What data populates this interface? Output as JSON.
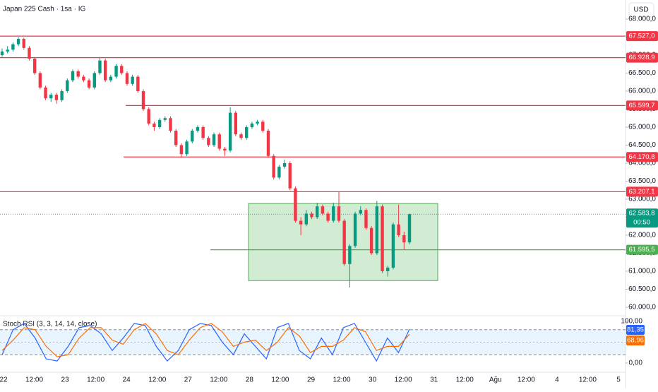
{
  "chart_data": [
    {
      "type": "candlestick",
      "title": "Japan 225 Cash · 1sa · IG",
      "currency": "USD",
      "up_color": "#089981",
      "down_color": "#f23645",
      "candles": [
        [
          67000,
          67180,
          66950,
          67100
        ],
        [
          67100,
          67250,
          67050,
          67150
        ],
        [
          67150,
          67350,
          67100,
          67300
        ],
        [
          67300,
          67500,
          67250,
          67450
        ],
        [
          67450,
          67480,
          67150,
          67200
        ],
        [
          67200,
          67250,
          66850,
          66900
        ],
        [
          66900,
          66950,
          66450,
          66500
        ],
        [
          66500,
          66550,
          66050,
          66100
        ],
        [
          66100,
          66150,
          65750,
          65800
        ],
        [
          65800,
          65950,
          65700,
          65900
        ],
        [
          65900,
          65950,
          65650,
          65750
        ],
        [
          65750,
          66050,
          65700,
          66000
        ],
        [
          66000,
          66350,
          65950,
          66300
        ],
        [
          66300,
          66600,
          66250,
          66550
        ],
        [
          66550,
          66600,
          66350,
          66400
        ],
        [
          66400,
          66450,
          66250,
          66300
        ],
        [
          66300,
          66350,
          66050,
          66100
        ],
        [
          66100,
          66550,
          66050,
          66500
        ],
        [
          66500,
          66950,
          66450,
          66850
        ],
        [
          66850,
          66900,
          66250,
          66300
        ],
        [
          66300,
          66450,
          66250,
          66400
        ],
        [
          66400,
          66750,
          66350,
          66700
        ],
        [
          66700,
          66750,
          66450,
          66500
        ],
        [
          66500,
          66550,
          66150,
          66200
        ],
        [
          66200,
          66450,
          66150,
          66400
        ],
        [
          66400,
          66450,
          65950,
          66000
        ],
        [
          66000,
          66050,
          65450,
          65500
        ],
        [
          65500,
          65550,
          65050,
          65100
        ],
        [
          65100,
          65150,
          64900,
          65000
        ],
        [
          65000,
          65250,
          64950,
          65200
        ],
        [
          65200,
          65300,
          65150,
          65250
        ],
        [
          65250,
          65300,
          64850,
          64900
        ],
        [
          64900,
          64950,
          64450,
          64500
        ],
        [
          64500,
          64550,
          64150,
          64250
        ],
        [
          64250,
          64650,
          64200,
          64600
        ],
        [
          64600,
          64950,
          64550,
          64900
        ],
        [
          64900,
          65050,
          64850,
          65000
        ],
        [
          65000,
          65050,
          64650,
          64700
        ],
        [
          64700,
          64750,
          64450,
          64500
        ],
        [
          64500,
          64850,
          64450,
          64800
        ],
        [
          64800,
          64850,
          64350,
          64400
        ],
        [
          64400,
          64450,
          64200,
          64350
        ],
        [
          64350,
          65550,
          64300,
          65400
        ],
        [
          65400,
          65450,
          64750,
          64800
        ],
        [
          64800,
          64850,
          64650,
          64700
        ],
        [
          64700,
          65050,
          64650,
          65000
        ],
        [
          65000,
          65150,
          64950,
          65100
        ],
        [
          65100,
          65200,
          65050,
          65150
        ],
        [
          65150,
          65200,
          64850,
          64900
        ],
        [
          64900,
          64950,
          64150,
          64200
        ],
        [
          64200,
          64250,
          63550,
          63600
        ],
        [
          63600,
          63950,
          63550,
          63900
        ],
        [
          63900,
          64100,
          63850,
          64000
        ],
        [
          64000,
          64050,
          63250,
          63300
        ],
        [
          63300,
          63350,
          62350,
          62400
        ],
        [
          62400,
          62500,
          62000,
          62300
        ],
        [
          62300,
          62700,
          62250,
          62600
        ],
        [
          62600,
          62650,
          62450,
          62500
        ],
        [
          62500,
          62900,
          62450,
          62800
        ],
        [
          62800,
          62850,
          62550,
          62600
        ],
        [
          62600,
          62650,
          62350,
          62400
        ],
        [
          62400,
          62900,
          62350,
          62800
        ],
        [
          62800,
          63200,
          62350,
          62400
        ],
        [
          62400,
          62450,
          61150,
          61200
        ],
        [
          61200,
          61750,
          60550,
          61700
        ],
        [
          61700,
          62650,
          61650,
          62600
        ],
        [
          62600,
          62800,
          62550,
          62700
        ],
        [
          62700,
          62750,
          62150,
          62200
        ],
        [
          62200,
          62250,
          61450,
          61500
        ],
        [
          61500,
          62950,
          61450,
          62800
        ],
        [
          62800,
          62850,
          60950,
          61000
        ],
        [
          61000,
          61150,
          60850,
          61100
        ],
        [
          61100,
          62350,
          61050,
          62300
        ],
        [
          62300,
          62850,
          61950,
          62000
        ],
        [
          62000,
          62100,
          61600,
          61800
        ],
        [
          61800,
          62600,
          61750,
          62583.8
        ]
      ],
      "ylim": [
        59804,
        68529
      ],
      "yticks": [
        {
          "value": 60000,
          "label": "60.000,0"
        },
        {
          "value": 60500,
          "label": "60.500,0"
        },
        {
          "value": 61000,
          "label": "61.000,0"
        },
        {
          "value": 61500,
          "label": "61.500,0"
        },
        {
          "value": 62000,
          "label": "62.000,0"
        },
        {
          "value": 62500,
          "label": "62.500,0"
        },
        {
          "value": 63000,
          "label": "63.000,0"
        },
        {
          "value": 63500,
          "label": "63.500,0"
        },
        {
          "value": 64000,
          "label": "64.000,0"
        },
        {
          "value": 64500,
          "label": "64.500,0"
        },
        {
          "value": 65000,
          "label": "65.000,0"
        },
        {
          "value": 65500,
          "label": "65.500,0"
        },
        {
          "value": 66000,
          "label": "66.000,0"
        },
        {
          "value": 66500,
          "label": "66.500,0"
        },
        {
          "value": 67000,
          "label": "67.000,0"
        },
        {
          "value": 67500,
          "label": "67.500,0"
        },
        {
          "value": 68000,
          "label": "68.000,0"
        }
      ],
      "levels": [
        {
          "value": 67527,
          "label": "67.527,0",
          "color": "#f23645"
        },
        {
          "value": 66928.9,
          "label": "66.928,9",
          "color": "#f23645"
        },
        {
          "value": 65599.7,
          "label": "65.599,7",
          "color": "#f23645"
        },
        {
          "value": 64170.8,
          "label": "64.170,8",
          "color": "#f23645"
        },
        {
          "value": 63207.1,
          "label": "63.207,1",
          "color": "#f23645"
        },
        {
          "value": 61595.5,
          "label": "61.595,5",
          "color": "#4caf50"
        }
      ],
      "box": {
        "top": 62880,
        "bottom": 60740,
        "color": "#4caf50"
      },
      "last_price": {
        "value": 62583.8,
        "label": "62.583,8",
        "countdown": "00:50",
        "color": "#089981"
      },
      "time_labels": [
        "22",
        "12:00",
        "23",
        "12:00",
        "24",
        "12:00",
        "27",
        "12:00",
        "28",
        "12:00",
        "29",
        "12:00",
        "30",
        "12:00",
        "31",
        "12:00",
        "Ağu",
        "12:00",
        "4",
        "12:00",
        "5"
      ],
      "grid": false
    },
    {
      "type": "line",
      "title": "Stoch RSI (3, 3, 14, 14, close)",
      "ylim": [
        0,
        100
      ],
      "yticks": [
        {
          "value": 0,
          "label": "0,00"
        },
        {
          "value": 100,
          "label": "100,00"
        }
      ],
      "band": [
        20,
        80
      ],
      "midline": 50,
      "series": [
        {
          "name": "K",
          "color": "#2962ff",
          "last_label": "81,35",
          "values": [
            20,
            80,
            95,
            60,
            10,
            5,
            40,
            85,
            90,
            70,
            30,
            60,
            95,
            90,
            40,
            5,
            30,
            80,
            95,
            90,
            50,
            20,
            70,
            40,
            10,
            85,
            95,
            30,
            10,
            60,
            20,
            85,
            95,
            50,
            5,
            60,
            25,
            81.35
          ]
        },
        {
          "name": "D",
          "color": "#ff6d00",
          "last_label": "68,96",
          "values": [
            30,
            55,
            85,
            80,
            40,
            15,
            20,
            60,
            85,
            85,
            55,
            45,
            80,
            95,
            70,
            30,
            20,
            55,
            85,
            95,
            75,
            40,
            50,
            55,
            30,
            50,
            85,
            65,
            25,
            40,
            40,
            55,
            85,
            75,
            30,
            40,
            40,
            68.96
          ]
        }
      ]
    }
  ]
}
